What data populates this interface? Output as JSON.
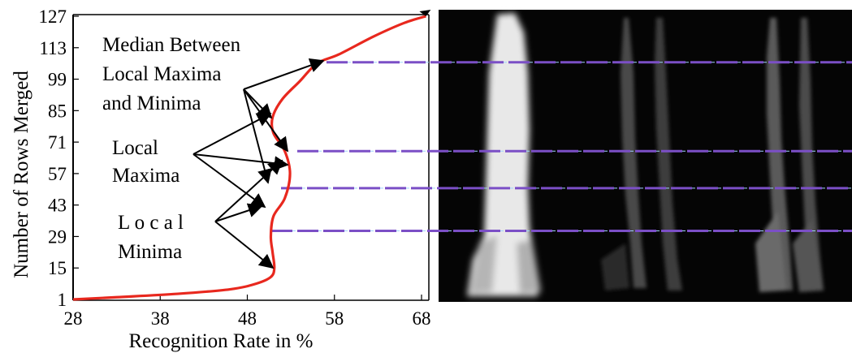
{
  "chart_data": {
    "type": "line",
    "xlabel": "Recognition Rate in %",
    "ylabel": "Number of Rows Merged",
    "xlim": [
      28,
      69
    ],
    "ylim": [
      1,
      128
    ],
    "xticks": [
      "28",
      "38",
      "48",
      "58",
      "68"
    ],
    "yticks": [
      "1",
      "15",
      "29",
      "43",
      "57",
      "71",
      "85",
      "99",
      "113",
      "127"
    ],
    "grid": false,
    "series": [
      {
        "color": "#e8281e",
        "x": [
          28,
          33,
          40,
          46,
          49,
          50.7,
          51.1,
          50.9,
          50.7,
          51.0,
          52.3,
          52.9,
          52.3,
          51.0,
          50.9,
          52.0,
          54.0,
          56.0,
          58.5,
          62.5,
          66.0,
          68.5
        ],
        "y": [
          1,
          2,
          3.5,
          5.5,
          8,
          11,
          15,
          22,
          29,
          38,
          46,
          57,
          67,
          75,
          82,
          90,
          98,
          106,
          110,
          118,
          124,
          127
        ]
      }
    ],
    "annotations": [
      {
        "id": "median",
        "lines": [
          "Median Between",
          "Local Maxima",
          "and  Minima"
        ]
      },
      {
        "id": "maxima",
        "lines": [
          "Local",
          "Maxima"
        ]
      },
      {
        "id": "minima",
        "lines": [
          "L o c a l",
          "Minima"
        ]
      }
    ],
    "reference_lines_y": [
      106.5,
      67,
      50.5,
      31.5
    ],
    "reference_line_color": "#7b4fc6"
  }
}
